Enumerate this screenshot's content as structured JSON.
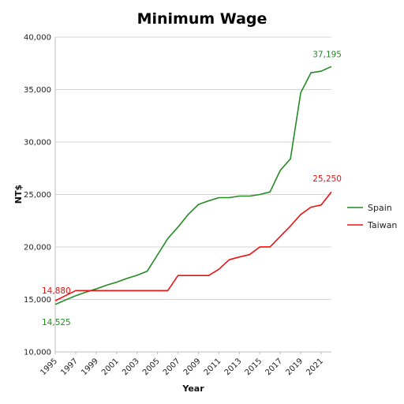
{
  "chart_data": {
    "type": "line",
    "title": "Minimum Wage",
    "xlabel": "Year",
    "ylabel": "NT$",
    "ylim": [
      10000,
      40000
    ],
    "xlim": [
      1995,
      2022
    ],
    "y_ticks": [
      "10,000",
      "15,000",
      "20,000",
      "25,000",
      "30,000",
      "35,000",
      "40,000"
    ],
    "x_ticks": [
      "1995",
      "1997",
      "1999",
      "2001",
      "2003",
      "2005",
      "2007",
      "2009",
      "2011",
      "2013",
      "2015",
      "2017",
      "2019",
      "2021"
    ],
    "grid": "horizontal",
    "legend": "right",
    "series": [
      {
        "name": "Spain",
        "color": "#228B22",
        "x": [
          1995,
          1996,
          1997,
          1998,
          1999,
          2000,
          2001,
          2002,
          2003,
          2004,
          2005,
          2006,
          2007,
          2008,
          2009,
          2010,
          2011,
          2012,
          2013,
          2014,
          2015,
          2016,
          2017,
          2018,
          2019,
          2020,
          2021,
          2022
        ],
        "values": [
          14525,
          14950,
          15350,
          15700,
          16000,
          16350,
          16650,
          17000,
          17300,
          17700,
          19250,
          20800,
          21900,
          23100,
          24050,
          24400,
          24700,
          24700,
          24850,
          24850,
          25000,
          25250,
          27300,
          28400,
          34700,
          36600,
          36750,
          37195
        ]
      },
      {
        "name": "Taiwan",
        "color": "#EE1111",
        "x": [
          1995,
          1996,
          1997,
          1998,
          1999,
          2000,
          2001,
          2002,
          2003,
          2004,
          2005,
          2006,
          2007,
          2008,
          2009,
          2010,
          2011,
          2012,
          2013,
          2014,
          2015,
          2016,
          2017,
          2018,
          2019,
          2020,
          2021,
          2022
        ],
        "values": [
          14880,
          15360,
          15840,
          15840,
          15840,
          15840,
          15840,
          15840,
          15840,
          15840,
          15840,
          15840,
          17280,
          17280,
          17280,
          17280,
          17880,
          18780,
          19047,
          19273,
          20008,
          20008,
          21009,
          22000,
          23100,
          23800,
          24000,
          25250
        ]
      }
    ],
    "annotations": [
      {
        "series": "Spain",
        "text": "14,525",
        "x": 1995,
        "y": 14525,
        "color": "#228B22"
      },
      {
        "series": "Spain",
        "text": "37,195",
        "x": 2022,
        "y": 37195,
        "color": "#228B22"
      },
      {
        "series": "Taiwan",
        "text": "14,880",
        "x": 1995,
        "y": 14880,
        "color": "#EE1111"
      },
      {
        "series": "Taiwan",
        "text": "25,250",
        "x": 2022,
        "y": 25250,
        "color": "#EE1111"
      }
    ]
  }
}
